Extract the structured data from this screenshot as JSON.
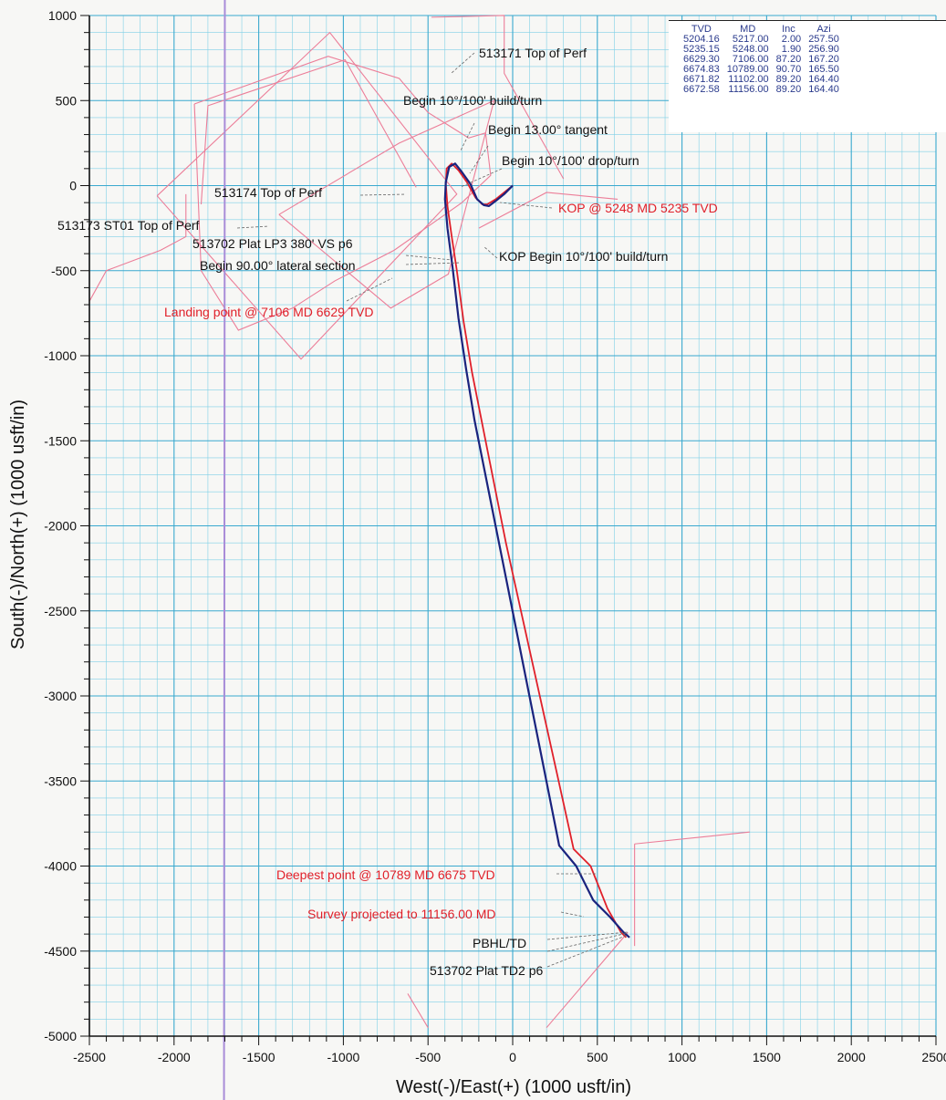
{
  "chart_data": {
    "type": "line",
    "xlabel": "West(-)/East(+) (1000 usft/in)",
    "ylabel": "South(-)/North(+) (1000 usft/in)",
    "xlim": [
      -2500,
      2500
    ],
    "ylim": [
      -5000,
      1000
    ],
    "x_ticks": [
      -2500,
      -2000,
      -1500,
      -1000,
      -500,
      0,
      500,
      1000,
      1500,
      2000,
      2500
    ],
    "y_ticks": [
      1000,
      500,
      0,
      -500,
      -1000,
      -1500,
      -2000,
      -2500,
      -3000,
      -3500,
      -4000,
      -4500,
      -5000
    ],
    "grid": true,
    "series": [
      {
        "color": "#e0202a",
        "x": [
          0,
          -50,
          -100,
          -150,
          -180,
          -220,
          -270,
          -320,
          -360,
          -390,
          -395,
          -385,
          -360,
          -330,
          -290,
          -240,
          -140,
          -40,
          60,
          160,
          260,
          360,
          460,
          560,
          640,
          670
        ],
        "y": [
          0,
          -40,
          -80,
          -110,
          -110,
          -70,
          20,
          90,
          130,
          100,
          10,
          -120,
          -300,
          -500,
          -800,
          -1100,
          -1600,
          -2100,
          -2550,
          -3000,
          -3450,
          -3900,
          -4000,
          -4250,
          -4390,
          -4420
        ]
      },
      {
        "color": "#1a237e",
        "x": [
          0,
          -50,
          -100,
          -140,
          -170,
          -210,
          -250,
          -300,
          -340,
          -375,
          -395,
          -400,
          -385,
          -355,
          -320,
          -275,
          -225,
          -125,
          -25,
          75,
          175,
          275,
          375,
          475,
          575,
          655,
          690
        ],
        "y": [
          0,
          -50,
          -90,
          -120,
          -115,
          -80,
          10,
          80,
          130,
          110,
          20,
          -80,
          -250,
          -480,
          -780,
          -1080,
          -1380,
          -1880,
          -2380,
          -2880,
          -3380,
          -3880,
          -4000,
          -4200,
          -4300,
          -4390,
          -4420
        ]
      }
    ],
    "annotations": [
      {
        "text": "513171 Top of Perf",
        "color": "black"
      },
      {
        "text": "Begin 10°/100' build/turn",
        "color": "black"
      },
      {
        "text": "Begin 13.00° tangent",
        "color": "black"
      },
      {
        "text": "Begin 10°/100' drop/turn",
        "color": "black"
      },
      {
        "text": "513174 Top of Perf",
        "color": "black"
      },
      {
        "text": "KOP @ 5248 MD 5235 TVD",
        "color": "red"
      },
      {
        "text": "513173 ST01 Top of Perf",
        "color": "black"
      },
      {
        "text": "513702 Plat LP3 380' VS p6",
        "color": "black"
      },
      {
        "text": "KOP Begin 10°/100' build/turn",
        "color": "black"
      },
      {
        "text": "Begin 90.00° lateral section",
        "color": "black"
      },
      {
        "text": "Landing point @ 7106 MD 6629 TVD",
        "color": "red"
      },
      {
        "text": "Deepest point @ 10789 MD 6675 TVD",
        "color": "red"
      },
      {
        "text": "Survey projected to 11156.00 MD",
        "color": "red"
      },
      {
        "text": "PBHL/TD",
        "color": "black"
      },
      {
        "text": "513702 Plat TD2 p6",
        "color": "black"
      }
    ],
    "table": {
      "headers": [
        "TVD",
        "MD",
        "Inc",
        "Azi"
      ],
      "rows": [
        [
          "5204.16",
          "5217.00",
          "2.00",
          "257.50"
        ],
        [
          "5235.15",
          "5248.00",
          "1.90",
          "256.90"
        ],
        [
          "6629.30",
          "7106.00",
          "87.20",
          "167.20"
        ],
        [
          "6674.83",
          "10789.00",
          "90.70",
          "165.50"
        ],
        [
          "6671.82",
          "11102.00",
          "89.20",
          "164.40"
        ],
        [
          "6672.58",
          "11156.00",
          "89.20",
          "164.40"
        ]
      ]
    }
  }
}
